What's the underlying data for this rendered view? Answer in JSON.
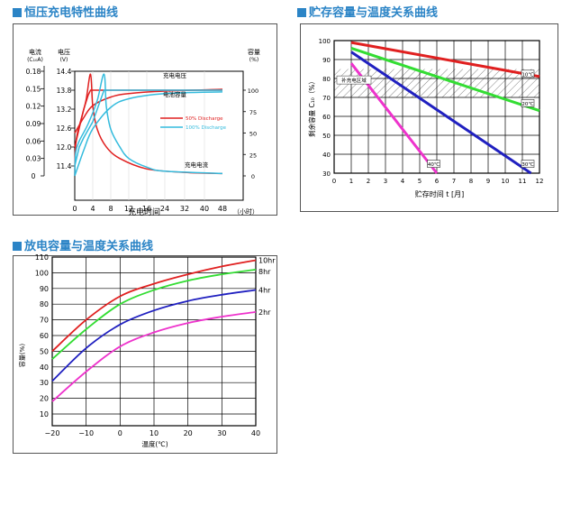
{
  "titles": {
    "charge": "恒压充电特性曲线",
    "storage": "贮存容量与温度关系曲线",
    "discharge": "放电容量与温度关系曲线"
  },
  "colors": {
    "title": "#2b84c6",
    "red": "#e02020",
    "green": "#33dd33",
    "blue": "#2020c0",
    "magenta": "#ee33cc",
    "cyan": "#33bbdd"
  },
  "chart_data": [
    {
      "id": "charge",
      "type": "line",
      "xlabel": "充电时间",
      "x_unit": "（小时）",
      "x_ticks": [
        "0",
        "4",
        "8",
        "12",
        "16",
        "24",
        "32",
        "40",
        "48"
      ],
      "left_axis1": {
        "label": "电流",
        "sublabel": "(C₁₀A)",
        "ticks": [
          "0.18",
          "0.15",
          "0.12",
          "0.09",
          "0.06",
          "0.03",
          "0"
        ]
      },
      "left_axis2": {
        "label": "电压",
        "sublabel": "(V)",
        "ticks": [
          "14.4",
          "13.8",
          "13.2",
          "12.6",
          "12.0",
          "11.4"
        ]
      },
      "right_axis": {
        "label": "容量",
        "sublabel": "(%)",
        "ticks": [
          "100",
          "75",
          "50",
          "25",
          "0"
        ]
      },
      "annotations": [
        "充电电压",
        "电池容量",
        "充电电流"
      ],
      "legend": [
        "50% Discharge",
        "100% Discharge"
      ],
      "series": [
        {
          "name": "50% Discharge",
          "color": "#e02020",
          "voltage": [
            [
              0,
              12.0
            ],
            [
              0.5,
              12.3
            ],
            [
              1,
              12.6
            ],
            [
              2,
              13.2
            ],
            [
              3,
              13.65
            ],
            [
              3.5,
              13.8
            ],
            [
              12,
              13.8
            ],
            [
              48,
              13.8
            ]
          ],
          "current": [
            [
              0,
              0
            ],
            [
              0.1,
              0.04
            ],
            [
              0.5,
              0.07
            ],
            [
              1.5,
              0.1
            ],
            [
              2.5,
              0.13
            ],
            [
              3.5,
              0.175
            ],
            [
              4,
              0.12
            ],
            [
              5,
              0.08
            ],
            [
              7,
              0.05
            ],
            [
              10,
              0.03
            ],
            [
              16,
              0.012
            ],
            [
              32,
              0.006
            ],
            [
              48,
              0.004
            ]
          ],
          "capacity": [
            [
              0,
              50
            ],
            [
              2,
              68
            ],
            [
              4,
              82
            ],
            [
              8,
              92
            ],
            [
              12,
              96
            ],
            [
              24,
              99
            ],
            [
              48,
              101
            ]
          ]
        },
        {
          "name": "100% Discharge",
          "color": "#33bbdd",
          "voltage": [
            [
              0,
              11.4
            ],
            [
              1,
              12.0
            ],
            [
              2,
              12.3
            ],
            [
              4,
              12.8
            ],
            [
              5.5,
              13.4
            ],
            [
              6.5,
              13.8
            ],
            [
              48,
              13.8
            ]
          ],
          "current": [
            [
              0,
              0
            ],
            [
              0.2,
              0.04
            ],
            [
              1,
              0.06
            ],
            [
              3,
              0.09
            ],
            [
              5,
              0.13
            ],
            [
              6.5,
              0.175
            ],
            [
              7,
              0.12
            ],
            [
              8,
              0.08
            ],
            [
              10,
              0.05
            ],
            [
              12,
              0.03
            ],
            [
              16,
              0.015
            ],
            [
              24,
              0.008
            ],
            [
              48,
              0.004
            ]
          ],
          "capacity": [
            [
              0,
              0
            ],
            [
              2,
              30
            ],
            [
              4,
              55
            ],
            [
              8,
              80
            ],
            [
              12,
              90
            ],
            [
              24,
              96
            ],
            [
              48,
              98
            ]
          ]
        }
      ]
    },
    {
      "id": "storage",
      "type": "line",
      "xlabel": "贮存时间 t [月]",
      "ylabel": "剩余容量 C₁₀（%）",
      "xlim": [
        0,
        12
      ],
      "ylim": [
        30,
        100
      ],
      "x_ticks": [
        "0",
        "1",
        "2",
        "3",
        "4",
        "5",
        "6",
        "7",
        "8",
        "9",
        "10",
        "11",
        "12"
      ],
      "y_ticks": [
        "100",
        "90",
        "80",
        "70",
        "60",
        "50",
        "40",
        "30"
      ],
      "band_label": "补充电区域",
      "band": [
        70,
        85
      ],
      "series": [
        {
          "name": "10℃",
          "color": "#e02020",
          "points": [
            [
              1,
              99
            ],
            [
              12,
              81
            ]
          ]
        },
        {
          "name": "20℃",
          "color": "#33dd33",
          "points": [
            [
              1,
              96
            ],
            [
              12,
              63
            ]
          ]
        },
        {
          "name": "30℃",
          "color": "#2020c0",
          "points": [
            [
              1,
              94
            ],
            [
              11.5,
              30
            ]
          ]
        },
        {
          "name": "40℃",
          "color": "#ee33cc",
          "points": [
            [
              1,
              88
            ],
            [
              6,
              30
            ]
          ]
        }
      ]
    },
    {
      "id": "discharge",
      "type": "line",
      "xlabel": "温度(℃)",
      "ylabel": "容量(%)",
      "xlim": [
        -20,
        40
      ],
      "ylim": [
        10,
        110
      ],
      "x_ticks": [
        "−20",
        "−10",
        "0",
        "10",
        "20",
        "30",
        "40"
      ],
      "y_ticks": [
        "110",
        "100",
        "90",
        "80",
        "70",
        "60",
        "50",
        "40",
        "30",
        "20",
        "10"
      ],
      "series": [
        {
          "name": "10hr",
          "color": "#e02020",
          "points": [
            [
              -20,
              50
            ],
            [
              -10,
              70
            ],
            [
              0,
              85
            ],
            [
              10,
              93
            ],
            [
              20,
              99
            ],
            [
              30,
              104
            ],
            [
              40,
              108
            ]
          ]
        },
        {
          "name": "8hr",
          "color": "#33dd33",
          "points": [
            [
              -20,
              45
            ],
            [
              -10,
              64
            ],
            [
              0,
              80
            ],
            [
              10,
              89
            ],
            [
              20,
              95
            ],
            [
              30,
              99
            ],
            [
              40,
              102
            ]
          ]
        },
        {
          "name": "4hr",
          "color": "#2020c0",
          "points": [
            [
              -20,
              31
            ],
            [
              -10,
              52
            ],
            [
              0,
              67
            ],
            [
              10,
              76
            ],
            [
              20,
              82
            ],
            [
              30,
              86
            ],
            [
              40,
              89
            ]
          ]
        },
        {
          "name": "2hr",
          "color": "#ee33cc",
          "points": [
            [
              -20,
              18
            ],
            [
              -10,
              37
            ],
            [
              0,
              53
            ],
            [
              10,
              62
            ],
            [
              20,
              68
            ],
            [
              30,
              72
            ],
            [
              40,
              75
            ]
          ]
        }
      ]
    }
  ]
}
